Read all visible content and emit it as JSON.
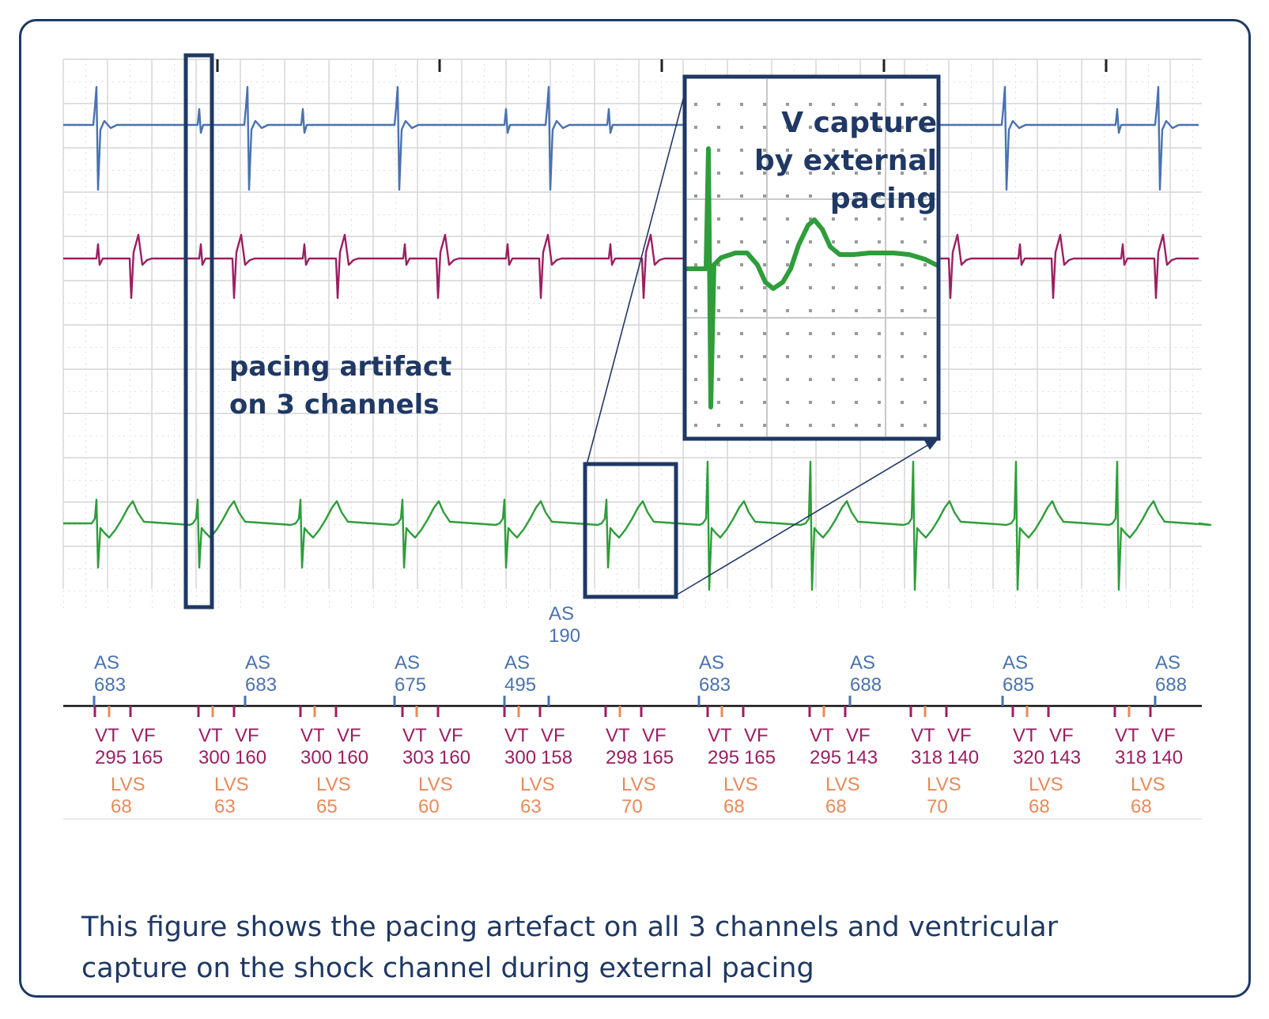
{
  "annotations": {
    "artifact": [
      "pacing artifact",
      "on 3 channels"
    ],
    "vcapture": [
      "V capture",
      "by external",
      "pacing"
    ]
  },
  "caption": [
    "This figure shows the pacing artefact on all 3 channels and ventricular",
    "capture on the shock channel during external pacing"
  ],
  "colors": {
    "frame": "#1f3864",
    "atrial": "#4a72b0",
    "ventricular": "#9c1e62",
    "shock": "#2e9d3a",
    "lvs": "#e88a5a",
    "grid": "#c8c8c8"
  },
  "markers": {
    "as_top": {
      "label": "AS",
      "value": "190"
    },
    "as": [
      {
        "label": "AS",
        "value": "683"
      },
      {
        "label": "AS",
        "value": "683"
      },
      {
        "label": "AS",
        "value": "675"
      },
      {
        "label": "AS",
        "value": "495"
      },
      {
        "label": "AS",
        "value": "683"
      },
      {
        "label": "AS",
        "value": "688"
      },
      {
        "label": "AS",
        "value": "685"
      },
      {
        "label": "AS",
        "value": "688"
      }
    ],
    "vt_vf": [
      {
        "vt": "VT",
        "vf": "VF",
        "vt_val": "295",
        "vf_val": "165",
        "lvs": "LVS",
        "lvs_val": "68"
      },
      {
        "vt": "VT",
        "vf": "VF",
        "vt_val": "300",
        "vf_val": "160",
        "lvs": "LVS",
        "lvs_val": "63"
      },
      {
        "vt": "VT",
        "vf": "VF",
        "vt_val": "300",
        "vf_val": "160",
        "lvs": "LVS",
        "lvs_val": "65"
      },
      {
        "vt": "VT",
        "vf": "VF",
        "vt_val": "303",
        "vf_val": "160",
        "lvs": "LVS",
        "lvs_val": "60"
      },
      {
        "vt": "VT",
        "vf": "VF",
        "vt_val": "300",
        "vf_val": "158",
        "lvs": "LVS",
        "lvs_val": "63"
      },
      {
        "vt": "VT",
        "vf": "VF",
        "vt_val": "298",
        "vf_val": "165",
        "lvs": "LVS",
        "lvs_val": "70"
      },
      {
        "vt": "VT",
        "vf": "VF",
        "vt_val": "295",
        "vf_val": "165",
        "lvs": "LVS",
        "lvs_val": "68"
      },
      {
        "vt": "VT",
        "vf": "VF",
        "vt_val": "295",
        "vf_val": "143",
        "lvs": "LVS",
        "lvs_val": "68"
      },
      {
        "vt": "VT",
        "vf": "VF",
        "vt_val": "318",
        "vf_val": "140",
        "lvs": "LVS",
        "lvs_val": "70"
      },
      {
        "vt": "VT",
        "vf": "VF",
        "vt_val": "320",
        "vf_val": "143",
        "lvs": "LVS",
        "lvs_val": "68"
      },
      {
        "vt": "VT",
        "vf": "VF",
        "vt_val": "318",
        "vf_val": "140",
        "lvs": "LVS",
        "lvs_val": "68"
      }
    ]
  }
}
